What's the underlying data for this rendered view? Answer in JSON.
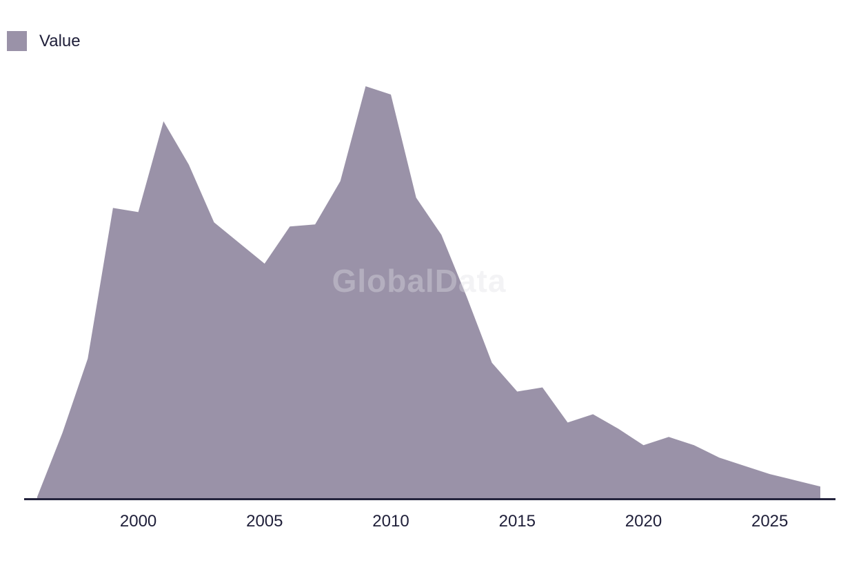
{
  "legend": {
    "label": "Value",
    "swatch_color": "#9a92a8"
  },
  "watermark": {
    "text": "GlobalData"
  },
  "colors": {
    "area": "#9a92a8",
    "axis_line": "#23233c",
    "text": "#20203a",
    "background": "#ffffff"
  },
  "chart_data": {
    "type": "area",
    "title": "",
    "xlabel": "",
    "ylabel": "",
    "legend_position": "top-left",
    "grid": false,
    "y_axis_shown": false,
    "x_range": [
      1996,
      2027
    ],
    "ylim": [
      0,
      100
    ],
    "x": [
      1996,
      1997,
      1998,
      1999,
      2000,
      2001,
      2002,
      2003,
      2004,
      2005,
      2006,
      2007,
      2008,
      2009,
      2010,
      2011,
      2012,
      2013,
      2014,
      2015,
      2016,
      2017,
      2018,
      2019,
      2020,
      2021,
      2022,
      2023,
      2024,
      2025,
      2026,
      2027
    ],
    "series": [
      {
        "name": "Value",
        "values": [
          0.5,
          16,
          34,
          70.5,
          69.5,
          91.5,
          81,
          67,
          62,
          57,
          66,
          66.5,
          77,
          100,
          98,
          73,
          64,
          49,
          33,
          26,
          27,
          18.5,
          20.5,
          17,
          13,
          15,
          13,
          10,
          8,
          6,
          4.5,
          3
        ]
      }
    ],
    "x_tick_labels": [
      "2000",
      "2005",
      "2010",
      "2015",
      "2020",
      "2025"
    ],
    "x_tick_years": [
      2000,
      2005,
      2010,
      2015,
      2020,
      2025
    ]
  }
}
